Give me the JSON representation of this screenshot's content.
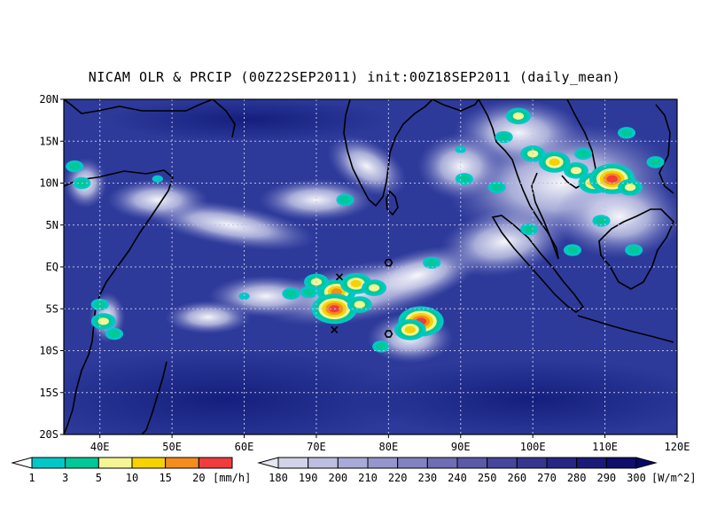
{
  "title": "NICAM OLR & PRCIP (00Z22SEP2011) init:00Z18SEP2011 (daily_mean)",
  "map": {
    "lon_range": [
      35,
      120
    ],
    "lat_range": [
      -20,
      20
    ],
    "lat_ticks": [
      {
        "value": 20,
        "label": "20N"
      },
      {
        "value": 15,
        "label": "15N"
      },
      {
        "value": 10,
        "label": "10N"
      },
      {
        "value": 5,
        "label": "5N"
      },
      {
        "value": 0,
        "label": "EQ"
      },
      {
        "value": -5,
        "label": "5S"
      },
      {
        "value": -10,
        "label": "10S"
      },
      {
        "value": -15,
        "label": "15S"
      },
      {
        "value": -20,
        "label": "20S"
      }
    ],
    "lon_ticks": [
      {
        "value": 40,
        "label": "40E"
      },
      {
        "value": 50,
        "label": "50E"
      },
      {
        "value": 60,
        "label": "60E"
      },
      {
        "value": 70,
        "label": "70E"
      },
      {
        "value": 80,
        "label": "80E"
      },
      {
        "value": 90,
        "label": "90E"
      },
      {
        "value": 100,
        "label": "100E"
      },
      {
        "value": 110,
        "label": "110E"
      },
      {
        "value": 120,
        "label": "120E"
      }
    ],
    "background_color": "#2d3a9a",
    "grid": true,
    "markers": [
      {
        "type": "x",
        "lon": 73.2,
        "lat": -1.2
      },
      {
        "type": "x",
        "lon": 72.5,
        "lat": -7.5
      },
      {
        "type": "hex",
        "lon": 80.0,
        "lat": 0.5
      },
      {
        "type": "hex",
        "lon": 80.0,
        "lat": -8.0
      }
    ]
  },
  "precip_colorbar": {
    "labels": [
      "1",
      "3",
      "5",
      "10",
      "15",
      "20"
    ],
    "unit": "[mm/h]",
    "colors": [
      "#00c8c8",
      "#00c896",
      "#f5f596",
      "#f5d200",
      "#f58c1e",
      "#f03c3c"
    ]
  },
  "olr_colorbar": {
    "labels": [
      "180",
      "190",
      "200",
      "210",
      "220",
      "230",
      "240",
      "250",
      "260",
      "270",
      "280",
      "290",
      "300"
    ],
    "unit": "[W/m^2]",
    "colors": [
      "#e6e6f0",
      "#d2d2e8",
      "#bebee0",
      "#aaaad8",
      "#9696cc",
      "#8282c0",
      "#6e6eb4",
      "#5a5aa8",
      "#46469c",
      "#363690",
      "#262684",
      "#1a1a78",
      "#0e0e6c",
      "#08086a"
    ]
  },
  "precip_cells": [
    {
      "lon": 72.8,
      "lat": -3.0,
      "level": 5
    },
    {
      "lon": 75.5,
      "lat": -2.0,
      "level": 4
    },
    {
      "lon": 78.0,
      "lat": -2.5,
      "level": 3
    },
    {
      "lon": 72.5,
      "lat": -5.0,
      "level": 6
    },
    {
      "lon": 84.5,
      "lat": -6.5,
      "level": 6
    },
    {
      "lon": 83.0,
      "lat": -7.5,
      "level": 4
    },
    {
      "lon": 70.0,
      "lat": -1.8,
      "level": 3
    },
    {
      "lon": 69.0,
      "lat": -3.0,
      "level": 2
    },
    {
      "lon": 66.5,
      "lat": -3.2,
      "level": 2
    },
    {
      "lon": 76.0,
      "lat": -4.5,
      "level": 3
    },
    {
      "lon": 79.0,
      "lat": -9.5,
      "level": 2
    },
    {
      "lon": 86.0,
      "lat": 0.5,
      "level": 2
    },
    {
      "lon": 60.0,
      "lat": -3.5,
      "level": 1
    },
    {
      "lon": 74.0,
      "lat": 8.0,
      "level": 2
    },
    {
      "lon": 90.5,
      "lat": 10.5,
      "level": 2
    },
    {
      "lon": 100.0,
      "lat": 13.5,
      "level": 3
    },
    {
      "lon": 103.0,
      "lat": 12.5,
      "level": 4
    },
    {
      "lon": 106.0,
      "lat": 11.5,
      "level": 3
    },
    {
      "lon": 108.5,
      "lat": 10.0,
      "level": 4
    },
    {
      "lon": 111.0,
      "lat": 10.5,
      "level": 6
    },
    {
      "lon": 113.5,
      "lat": 9.5,
      "level": 3
    },
    {
      "lon": 107.0,
      "lat": 13.5,
      "level": 2
    },
    {
      "lon": 113.0,
      "lat": 16.0,
      "level": 2
    },
    {
      "lon": 117.0,
      "lat": 12.5,
      "level": 2
    },
    {
      "lon": 98.0,
      "lat": 18.0,
      "level": 3
    },
    {
      "lon": 96.0,
      "lat": 15.5,
      "level": 2
    },
    {
      "lon": 114.0,
      "lat": 2.0,
      "level": 2
    },
    {
      "lon": 109.5,
      "lat": 5.5,
      "level": 2
    },
    {
      "lon": 105.5,
      "lat": 2.0,
      "level": 2
    },
    {
      "lon": 99.5,
      "lat": 4.5,
      "level": 2
    },
    {
      "lon": 37.5,
      "lat": 10.0,
      "level": 2
    },
    {
      "lon": 36.5,
      "lat": 12.0,
      "level": 2
    },
    {
      "lon": 48.0,
      "lat": 10.5,
      "level": 1
    },
    {
      "lon": 40.5,
      "lat": -6.5,
      "level": 3
    },
    {
      "lon": 40.0,
      "lat": -4.5,
      "level": 2
    },
    {
      "lon": 42.0,
      "lat": -8.0,
      "level": 2
    },
    {
      "lon": 95.0,
      "lat": 9.5,
      "level": 2
    },
    {
      "lon": 90.0,
      "lat": 14.0,
      "level": 1
    }
  ],
  "cloud_bands": [
    {
      "lon": 76,
      "lat": -3,
      "rx": 14,
      "ry": 3.5,
      "rot": -10
    },
    {
      "lon": 84,
      "lat": -1,
      "rx": 9,
      "ry": 3,
      "rot": -15
    },
    {
      "lon": 63,
      "lat": -3.5,
      "rx": 8,
      "ry": 2.5,
      "rot": 0
    },
    {
      "lon": 83,
      "lat": -8.5,
      "rx": 6,
      "ry": 3,
      "rot": 0
    },
    {
      "lon": 96,
      "lat": 3,
      "rx": 9,
      "ry": 4,
      "rot": -10
    },
    {
      "lon": 104,
      "lat": 10,
      "rx": 16,
      "ry": 7,
      "rot": -5
    },
    {
      "lon": 98,
      "lat": 16,
      "rx": 9,
      "ry": 4,
      "rot": 0
    },
    {
      "lon": 112,
      "lat": 6,
      "rx": 9,
      "ry": 5,
      "rot": 0
    },
    {
      "lon": 58,
      "lat": 5,
      "rx": 12,
      "ry": 2.5,
      "rot": 10
    },
    {
      "lon": 77,
      "lat": 12,
      "rx": 6,
      "ry": 3,
      "rot": 30
    },
    {
      "lon": 70,
      "lat": 8,
      "rx": 8,
      "ry": 2.5,
      "rot": 0
    },
    {
      "lon": 48,
      "lat": 8,
      "rx": 7,
      "ry": 2.5,
      "rot": 0
    },
    {
      "lon": 38,
      "lat": 10,
      "rx": 3,
      "ry": 3,
      "rot": 0
    },
    {
      "lon": 41,
      "lat": -6,
      "rx": 2.5,
      "ry": 3,
      "rot": 0
    },
    {
      "lon": 90,
      "lat": 12,
      "rx": 6,
      "ry": 4,
      "rot": 0
    },
    {
      "lon": 55,
      "lat": -6,
      "rx": 6,
      "ry": 2,
      "rot": 0
    }
  ]
}
